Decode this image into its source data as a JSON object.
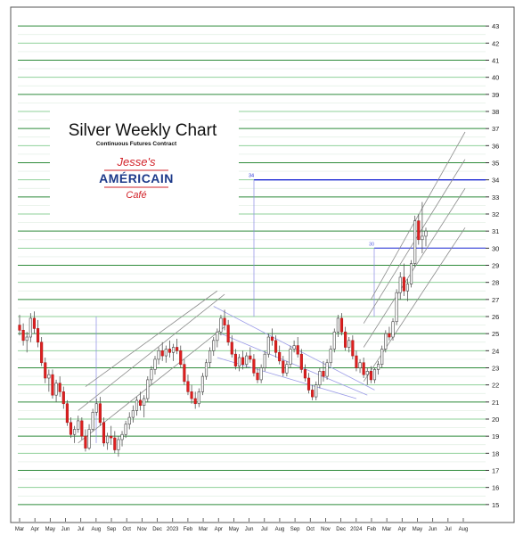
{
  "chart_data": {
    "type": "candlestick",
    "title": "Silver Weekly Chart",
    "subtitle": "Continuous Futures Contract",
    "logo": {
      "line1": "Jesse's",
      "line2": "AMÉRICAIN",
      "line3": "Café"
    },
    "y_axis": {
      "side": "right",
      "range": [
        14,
        44
      ],
      "tick_labels": [
        "15",
        "16",
        "17",
        "18",
        "19",
        "20",
        "21",
        "22",
        "23",
        "24",
        "25",
        "26",
        "27",
        "28",
        "29",
        "30",
        "31",
        "32",
        "33",
        "34",
        "35",
        "36",
        "37",
        "38",
        "39",
        "40",
        "41",
        "42",
        "43"
      ]
    },
    "x_axis": {
      "tick_labels": [
        "Mar",
        "Apr",
        "May",
        "Jun",
        "Jul",
        "Aug",
        "Sep",
        "Oct",
        "Nov",
        "Dec",
        "2023",
        "Feb",
        "Mar",
        "Apr",
        "May",
        "Jun",
        "Jul",
        "Aug",
        "Sep",
        "Oct",
        "Nov",
        "Dec",
        "2024",
        "Feb",
        "Mar",
        "Apr",
        "May",
        "Jun",
        "Jul",
        "Aug"
      ]
    },
    "horizontal_levels": [
      {
        "value": 34,
        "label": "34",
        "color": "#1f2bd6"
      },
      {
        "value": 30,
        "label": "30",
        "color": "#5a63e0"
      }
    ],
    "gridlines": {
      "colors": [
        "#2e8b3a",
        "#8fd19a"
      ]
    },
    "colors": {
      "up": "#ffffff",
      "down": "#e02020",
      "wick": "#555555",
      "channel": "#8c8c8c",
      "falling_channel": "#9b9be8"
    },
    "series": [
      {
        "ohlc": [
          [
            25.5,
            26.1,
            24.9,
            25.2
          ],
          [
            25.2,
            25.6,
            24.3,
            24.6
          ],
          [
            24.6,
            25.1,
            23.9,
            24.8
          ],
          [
            24.8,
            26.2,
            24.5,
            25.9
          ],
          [
            25.9,
            26.3,
            25.0,
            25.3
          ],
          [
            25.3,
            25.8,
            24.2,
            24.5
          ],
          [
            24.5,
            24.8,
            23.1,
            23.3
          ],
          [
            23.3,
            23.6,
            22.1,
            22.4
          ],
          [
            22.4,
            22.9,
            21.6,
            22.6
          ],
          [
            22.6,
            22.9,
            21.2,
            21.4
          ],
          [
            21.4,
            22.3,
            21.0,
            22.1
          ],
          [
            22.1,
            22.5,
            21.3,
            21.6
          ],
          [
            21.6,
            21.9,
            20.6,
            20.9
          ],
          [
            20.9,
            21.1,
            19.6,
            19.8
          ],
          [
            19.8,
            20.1,
            18.9,
            19.1
          ],
          [
            19.1,
            19.6,
            18.6,
            19.4
          ],
          [
            19.4,
            20.2,
            19.2,
            19.9
          ],
          [
            19.9,
            20.1,
            18.8,
            19.0
          ],
          [
            19.0,
            19.4,
            18.1,
            18.3
          ],
          [
            18.3,
            19.7,
            18.2,
            19.4
          ],
          [
            19.4,
            20.6,
            19.3,
            20.4
          ],
          [
            20.4,
            21.2,
            20.2,
            20.9
          ],
          [
            20.9,
            21.3,
            19.6,
            19.8
          ],
          [
            19.8,
            20.1,
            18.4,
            18.6
          ],
          [
            18.6,
            19.2,
            18.2,
            19.0
          ],
          [
            19.0,
            19.6,
            18.5,
            18.9
          ],
          [
            18.9,
            19.3,
            18.0,
            18.2
          ],
          [
            18.2,
            19.0,
            17.8,
            18.8
          ],
          [
            18.8,
            19.3,
            18.4,
            19.1
          ],
          [
            19.1,
            19.9,
            18.9,
            19.7
          ],
          [
            19.7,
            20.4,
            19.4,
            20.1
          ],
          [
            20.1,
            20.8,
            19.8,
            20.5
          ],
          [
            20.5,
            21.3,
            20.2,
            21.1
          ],
          [
            21.1,
            21.6,
            20.5,
            20.8
          ],
          [
            20.8,
            21.4,
            20.1,
            21.2
          ],
          [
            21.2,
            22.5,
            21.0,
            22.3
          ],
          [
            22.3,
            23.1,
            22.0,
            22.9
          ],
          [
            22.9,
            23.7,
            22.6,
            23.5
          ],
          [
            23.5,
            24.2,
            23.2,
            24.0
          ],
          [
            24.0,
            24.5,
            23.4,
            23.7
          ],
          [
            23.7,
            24.3,
            23.3,
            24.1
          ],
          [
            24.1,
            24.6,
            23.6,
            23.9
          ],
          [
            23.9,
            24.4,
            23.4,
            24.2
          ],
          [
            24.2,
            24.7,
            23.8,
            24.0
          ],
          [
            24.0,
            24.3,
            23.0,
            23.2
          ],
          [
            23.2,
            23.5,
            22.0,
            22.2
          ],
          [
            22.2,
            22.6,
            21.4,
            21.6
          ],
          [
            21.6,
            22.0,
            20.9,
            21.2
          ],
          [
            21.2,
            21.6,
            20.6,
            20.9
          ],
          [
            20.9,
            21.8,
            20.7,
            21.6
          ],
          [
            21.6,
            22.7,
            21.4,
            22.5
          ],
          [
            22.5,
            23.5,
            22.3,
            23.3
          ],
          [
            23.3,
            24.2,
            23.0,
            24.0
          ],
          [
            24.0,
            24.8,
            23.7,
            24.6
          ],
          [
            24.6,
            25.3,
            24.2,
            25.1
          ],
          [
            25.1,
            26.1,
            24.9,
            25.9
          ],
          [
            25.9,
            26.4,
            25.2,
            25.5
          ],
          [
            25.5,
            25.8,
            24.3,
            24.5
          ],
          [
            24.5,
            24.9,
            23.6,
            23.8
          ],
          [
            23.8,
            24.1,
            22.9,
            23.1
          ],
          [
            23.1,
            23.8,
            22.8,
            23.6
          ],
          [
            23.6,
            24.0,
            22.9,
            23.2
          ],
          [
            23.2,
            23.9,
            23.0,
            23.7
          ],
          [
            23.7,
            24.2,
            23.3,
            23.5
          ],
          [
            23.5,
            23.8,
            22.5,
            22.7
          ],
          [
            22.7,
            23.0,
            22.1,
            22.3
          ],
          [
            22.3,
            23.2,
            22.1,
            23.0
          ],
          [
            23.0,
            24.0,
            22.8,
            23.8
          ],
          [
            23.8,
            25.0,
            23.6,
            24.8
          ],
          [
            24.8,
            25.3,
            24.3,
            24.6
          ],
          [
            24.6,
            24.9,
            23.6,
            23.9
          ],
          [
            23.9,
            24.3,
            23.2,
            23.4
          ],
          [
            23.4,
            23.7,
            22.5,
            22.7
          ],
          [
            22.7,
            23.4,
            22.5,
            23.2
          ],
          [
            23.2,
            24.3,
            23.0,
            24.1
          ],
          [
            24.1,
            24.6,
            23.9,
            24.3
          ],
          [
            24.3,
            24.8,
            23.6,
            23.8
          ],
          [
            23.8,
            24.1,
            22.7,
            22.9
          ],
          [
            22.9,
            23.2,
            22.2,
            22.4
          ],
          [
            22.4,
            22.7,
            21.5,
            21.7
          ],
          [
            21.7,
            22.0,
            21.1,
            21.3
          ],
          [
            21.3,
            22.2,
            21.1,
            22.0
          ],
          [
            22.0,
            23.0,
            21.8,
            22.8
          ],
          [
            22.8,
            23.4,
            22.2,
            22.5
          ],
          [
            22.5,
            23.5,
            22.3,
            23.3
          ],
          [
            23.3,
            24.3,
            23.1,
            24.1
          ],
          [
            24.1,
            25.3,
            23.9,
            25.1
          ],
          [
            25.1,
            26.1,
            24.8,
            25.9
          ],
          [
            25.9,
            26.2,
            24.9,
            25.1
          ],
          [
            25.1,
            25.4,
            24.0,
            24.2
          ],
          [
            24.2,
            24.8,
            23.9,
            24.6
          ],
          [
            24.6,
            24.9,
            23.5,
            23.7
          ],
          [
            23.7,
            24.0,
            22.8,
            23.0
          ],
          [
            23.0,
            23.5,
            22.7,
            23.3
          ],
          [
            23.3,
            23.6,
            22.4,
            22.6
          ],
          [
            22.6,
            23.0,
            22.0,
            22.8
          ],
          [
            22.8,
            23.1,
            22.1,
            22.3
          ],
          [
            22.3,
            23.0,
            22.1,
            22.9
          ],
          [
            22.9,
            23.4,
            22.6,
            23.2
          ],
          [
            23.2,
            24.3,
            23.0,
            24.1
          ],
          [
            24.1,
            25.2,
            23.9,
            25.0
          ],
          [
            25.0,
            25.4,
            24.6,
            24.8
          ],
          [
            24.8,
            25.9,
            24.6,
            25.7
          ],
          [
            25.7,
            27.6,
            25.5,
            27.4
          ],
          [
            27.4,
            28.6,
            27.0,
            28.3
          ],
          [
            28.3,
            29.1,
            27.2,
            27.5
          ],
          [
            27.5,
            28.2,
            26.9,
            27.9
          ],
          [
            27.9,
            29.3,
            27.7,
            29.1
          ],
          [
            29.1,
            31.9,
            28.9,
            31.6
          ],
          [
            31.6,
            32.0,
            30.2,
            30.5
          ],
          [
            30.5,
            32.7,
            29.7,
            30.7
          ],
          [
            30.7,
            31.2,
            30.1,
            31.0
          ]
        ]
      }
    ]
  }
}
